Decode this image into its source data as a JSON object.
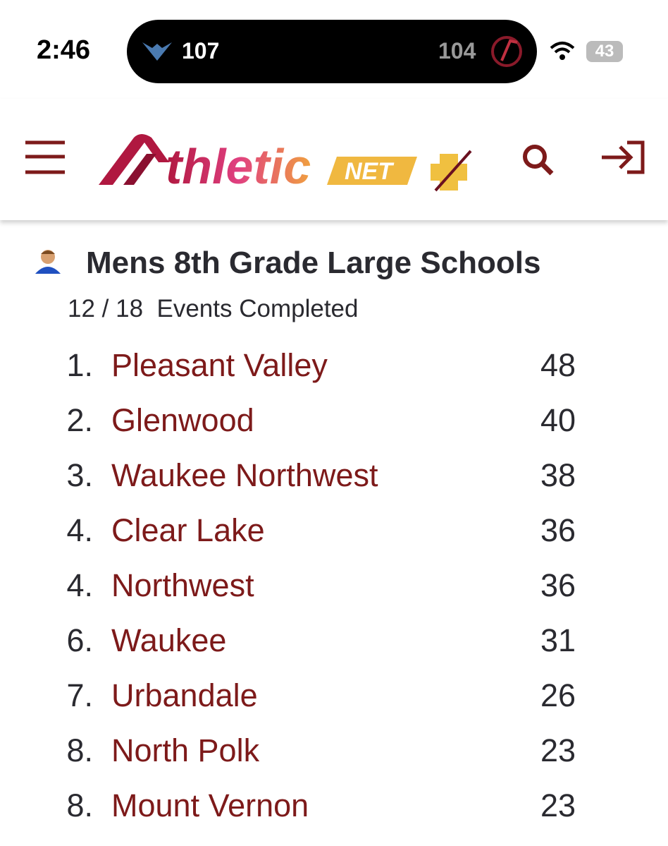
{
  "status_bar": {
    "time": "2:46",
    "live_activity": {
      "home_score": "107",
      "away_score": "104"
    },
    "battery": "43"
  },
  "nav": {
    "logo_text": "thletic",
    "logo_badge": "NET"
  },
  "standings": {
    "title": "Mens 8th Grade Large Schools",
    "progress": "12 / 18",
    "progress_label": "Events Completed",
    "rows": [
      {
        "rank": "1.",
        "team": "Pleasant Valley",
        "score": 48
      },
      {
        "rank": "2.",
        "team": "Glenwood",
        "score": 40
      },
      {
        "rank": "3.",
        "team": "Waukee Northwest",
        "score": 38
      },
      {
        "rank": "4.",
        "team": "Clear Lake",
        "score": 36
      },
      {
        "rank": "4.",
        "team": "Northwest",
        "score": 36
      },
      {
        "rank": "6.",
        "team": "Waukee",
        "score": 31
      },
      {
        "rank": "7.",
        "team": "Urbandale",
        "score": 26
      },
      {
        "rank": "8.",
        "team": "North Polk",
        "score": 23
      },
      {
        "rank": "8.",
        "team": "Mount Vernon",
        "score": 23
      }
    ]
  }
}
